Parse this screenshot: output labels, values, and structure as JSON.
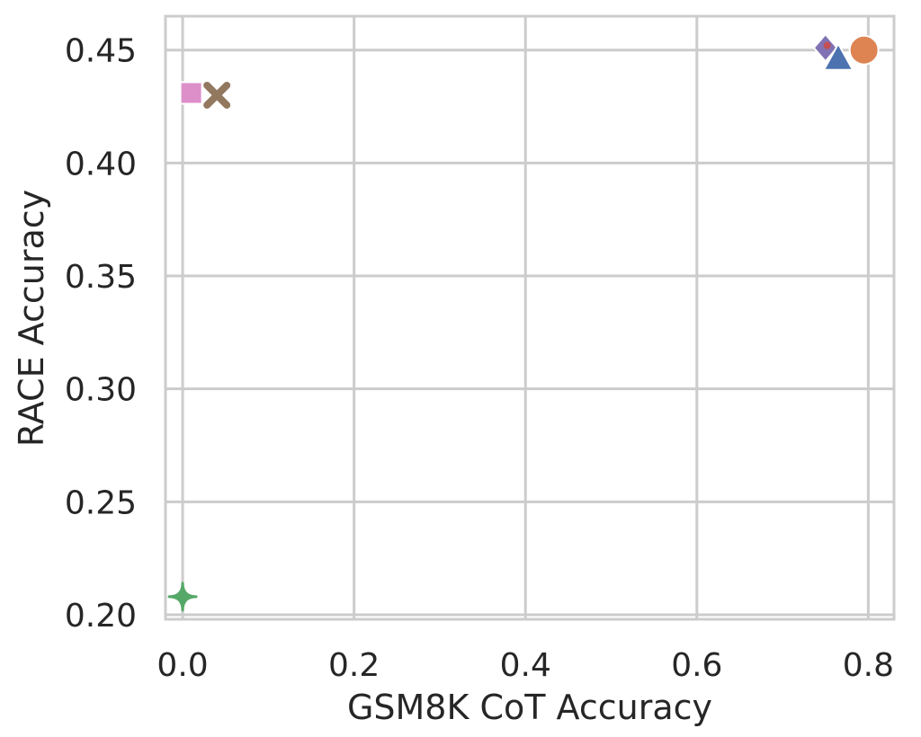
{
  "chart_data": {
    "type": "scatter",
    "title": "",
    "xlabel": "GSM8K CoT Accuracy",
    "ylabel": "RACE Accuracy",
    "xlim": [
      -0.02,
      0.83
    ],
    "ylim": [
      0.198,
      0.465
    ],
    "xticks": [
      0.0,
      0.2,
      0.4,
      0.6,
      0.8
    ],
    "xtick_labels": [
      "0.0",
      "0.2",
      "0.4",
      "0.6",
      "0.8"
    ],
    "yticks": [
      0.2,
      0.25,
      0.3,
      0.35,
      0.4,
      0.45
    ],
    "ytick_labels": [
      "0.20",
      "0.25",
      "0.30",
      "0.35",
      "0.40",
      "0.45"
    ],
    "grid": true,
    "legend": "none",
    "points": [
      {
        "x": 0.0,
        "y": 0.208,
        "marker": "star4",
        "color": "#55a868"
      },
      {
        "x": 0.01,
        "y": 0.431,
        "marker": "square",
        "color": "#dd8fc9"
      },
      {
        "x": 0.04,
        "y": 0.43,
        "marker": "x",
        "color": "#937860"
      },
      {
        "x": 0.75,
        "y": 0.451,
        "marker": "diamond",
        "color": "#8172b3"
      },
      {
        "x": 0.752,
        "y": 0.452,
        "marker": "dot",
        "color": "#c44e52"
      },
      {
        "x": 0.765,
        "y": 0.446,
        "marker": "triangle",
        "color": "#4c72b0"
      },
      {
        "x": 0.795,
        "y": 0.45,
        "marker": "circle",
        "color": "#dd8452"
      }
    ]
  }
}
